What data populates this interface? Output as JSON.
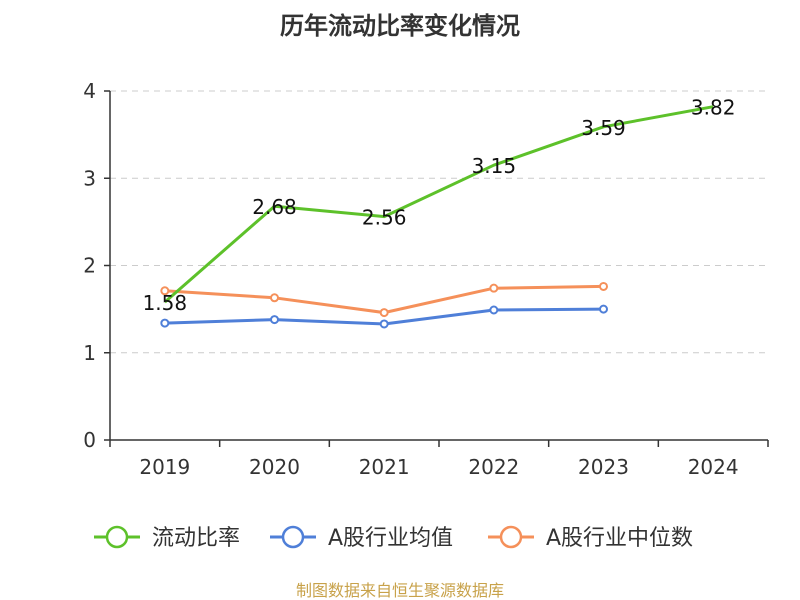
{
  "chart_data": {
    "type": "line",
    "title": "历年流动比率变化情况",
    "categories": [
      "2019",
      "2020",
      "2021",
      "2022",
      "2023",
      "2024"
    ],
    "ylim": [
      0,
      4
    ],
    "yticks": [
      0,
      1,
      2,
      3,
      4
    ],
    "grid": true,
    "legend_position": "bottom",
    "series": [
      {
        "name": "流动比率",
        "values": [
          1.58,
          2.68,
          2.56,
          3.15,
          3.59,
          3.82
        ],
        "labels": [
          "1.58",
          "2.68",
          "2.56",
          "3.15",
          "3.59",
          "3.82"
        ],
        "color": "#5dc12a"
      },
      {
        "name": "A股行业均值",
        "values": [
          1.34,
          1.38,
          1.33,
          1.49,
          1.5,
          null
        ],
        "color": "#4f7fd8"
      },
      {
        "name": "A股行业中位数",
        "values": [
          1.71,
          1.63,
          1.46,
          1.74,
          1.76,
          null
        ],
        "color": "#f5905a"
      }
    ]
  },
  "footer": {
    "source": "制图数据来自恒生聚源数据库"
  }
}
